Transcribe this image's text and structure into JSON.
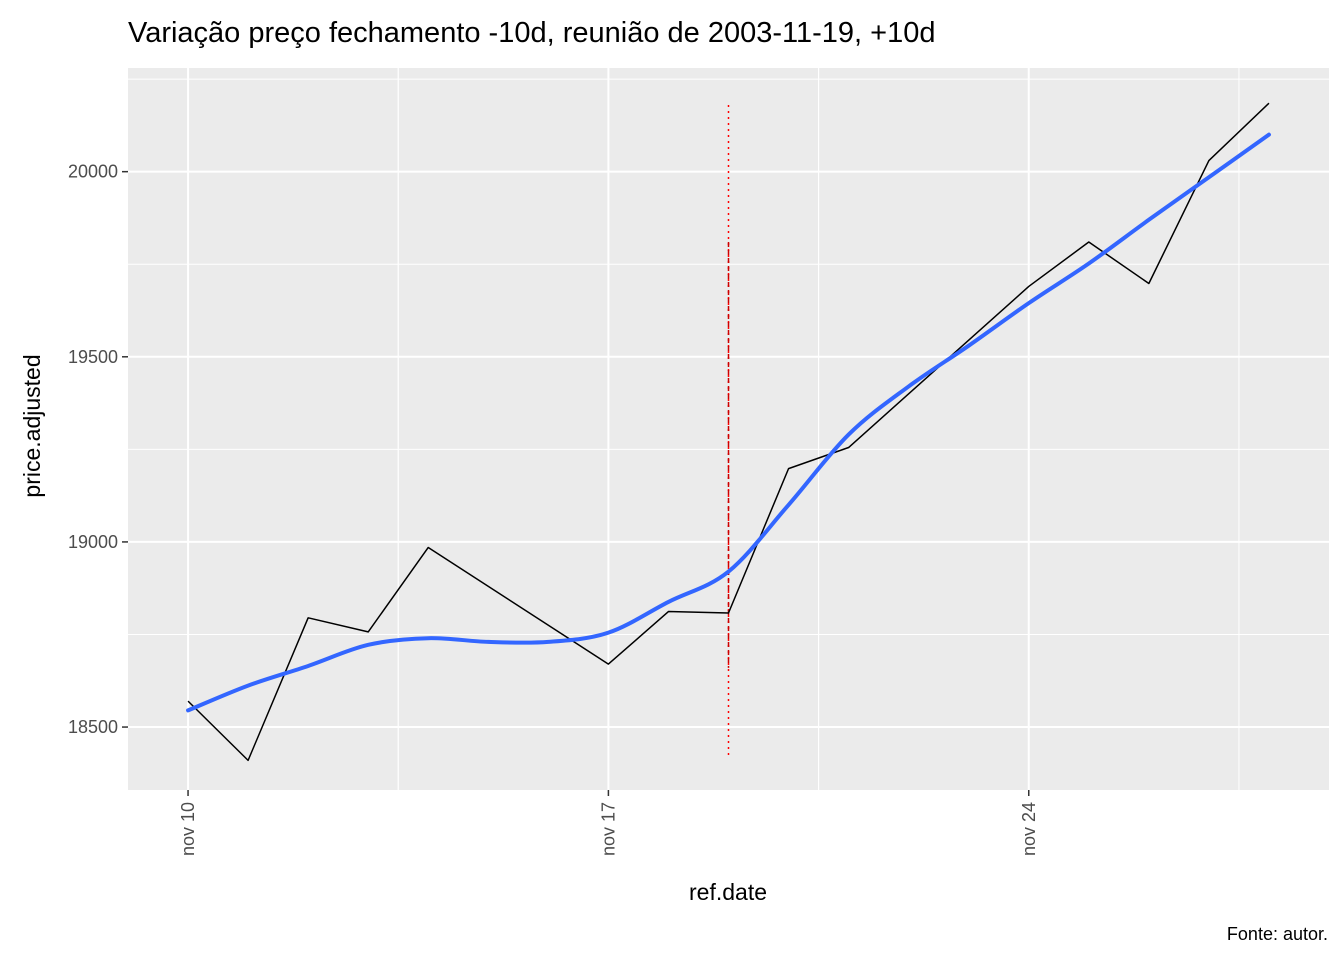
{
  "chart_data": {
    "type": "line",
    "title": "Variação preço fechamento -10d, reunião de 2003-11-19, +10d",
    "xlabel": "ref.date",
    "ylabel": "price.adjusted",
    "caption": "Fonte: autor.",
    "x_ticks": [
      {
        "date": "2003-11-10",
        "label": "nov 10"
      },
      {
        "date": "2003-11-17",
        "label": "nov 17"
      },
      {
        "date": "2003-11-24",
        "label": "nov 24"
      }
    ],
    "y_ticks": [
      18500,
      19000,
      19500,
      20000
    ],
    "xlim": [
      "2003-11-09",
      "2003-11-29"
    ],
    "ylim": [
      18330,
      20280
    ],
    "grid": true,
    "series": [
      {
        "style": "line",
        "color": "#000000",
        "points": [
          {
            "x": "2003-11-10",
            "y": 18570
          },
          {
            "x": "2003-11-11",
            "y": 18410
          },
          {
            "x": "2003-11-12",
            "y": 18795
          },
          {
            "x": "2003-11-13",
            "y": 18757
          },
          {
            "x": "2003-11-14",
            "y": 18985
          },
          {
            "x": "2003-11-17",
            "y": 18670
          },
          {
            "x": "2003-11-18",
            "y": 18812
          },
          {
            "x": "2003-11-19",
            "y": 18808
          },
          {
            "x": "2003-11-20",
            "y": 19198
          },
          {
            "x": "2003-11-21",
            "y": 19255
          },
          {
            "x": "2003-11-24",
            "y": 19690
          },
          {
            "x": "2003-11-25",
            "y": 19810
          },
          {
            "x": "2003-11-26",
            "y": 19698
          },
          {
            "x": "2003-11-27",
            "y": 20030
          },
          {
            "x": "2003-11-28",
            "y": 20185
          }
        ]
      },
      {
        "style": "smooth",
        "color": "#3366ff",
        "points": [
          {
            "x": "2003-11-10",
            "y": 18545
          },
          {
            "x": "2003-11-11",
            "y": 18612
          },
          {
            "x": "2003-11-12",
            "y": 18665
          },
          {
            "x": "2003-11-13",
            "y": 18722
          },
          {
            "x": "2003-11-14",
            "y": 18740
          },
          {
            "x": "2003-11-15",
            "y": 18730
          },
          {
            "x": "2003-11-16",
            "y": 18730
          },
          {
            "x": "2003-11-17",
            "y": 18755
          },
          {
            "x": "2003-11-18",
            "y": 18838
          },
          {
            "x": "2003-11-19",
            "y": 18920
          },
          {
            "x": "2003-11-20",
            "y": 19100
          },
          {
            "x": "2003-11-21",
            "y": 19290
          },
          {
            "x": "2003-11-22",
            "y": 19420
          },
          {
            "x": "2003-11-23",
            "y": 19530
          },
          {
            "x": "2003-11-24",
            "y": 19645
          },
          {
            "x": "2003-11-25",
            "y": 19752
          },
          {
            "x": "2003-11-26",
            "y": 19870
          },
          {
            "x": "2003-11-27",
            "y": 19985
          },
          {
            "x": "2003-11-28",
            "y": 20100
          }
        ]
      }
    ],
    "annotations": [
      {
        "type": "vline",
        "x": "2003-11-19",
        "y_range": [
          18420,
          20180
        ],
        "color": "#ff0000",
        "linestyle": "dotted"
      },
      {
        "type": "vline",
        "x": "2003-11-19",
        "y_range": [
          18660,
          19810
        ],
        "color": "#cc0000",
        "linestyle": "dashed"
      }
    ]
  }
}
